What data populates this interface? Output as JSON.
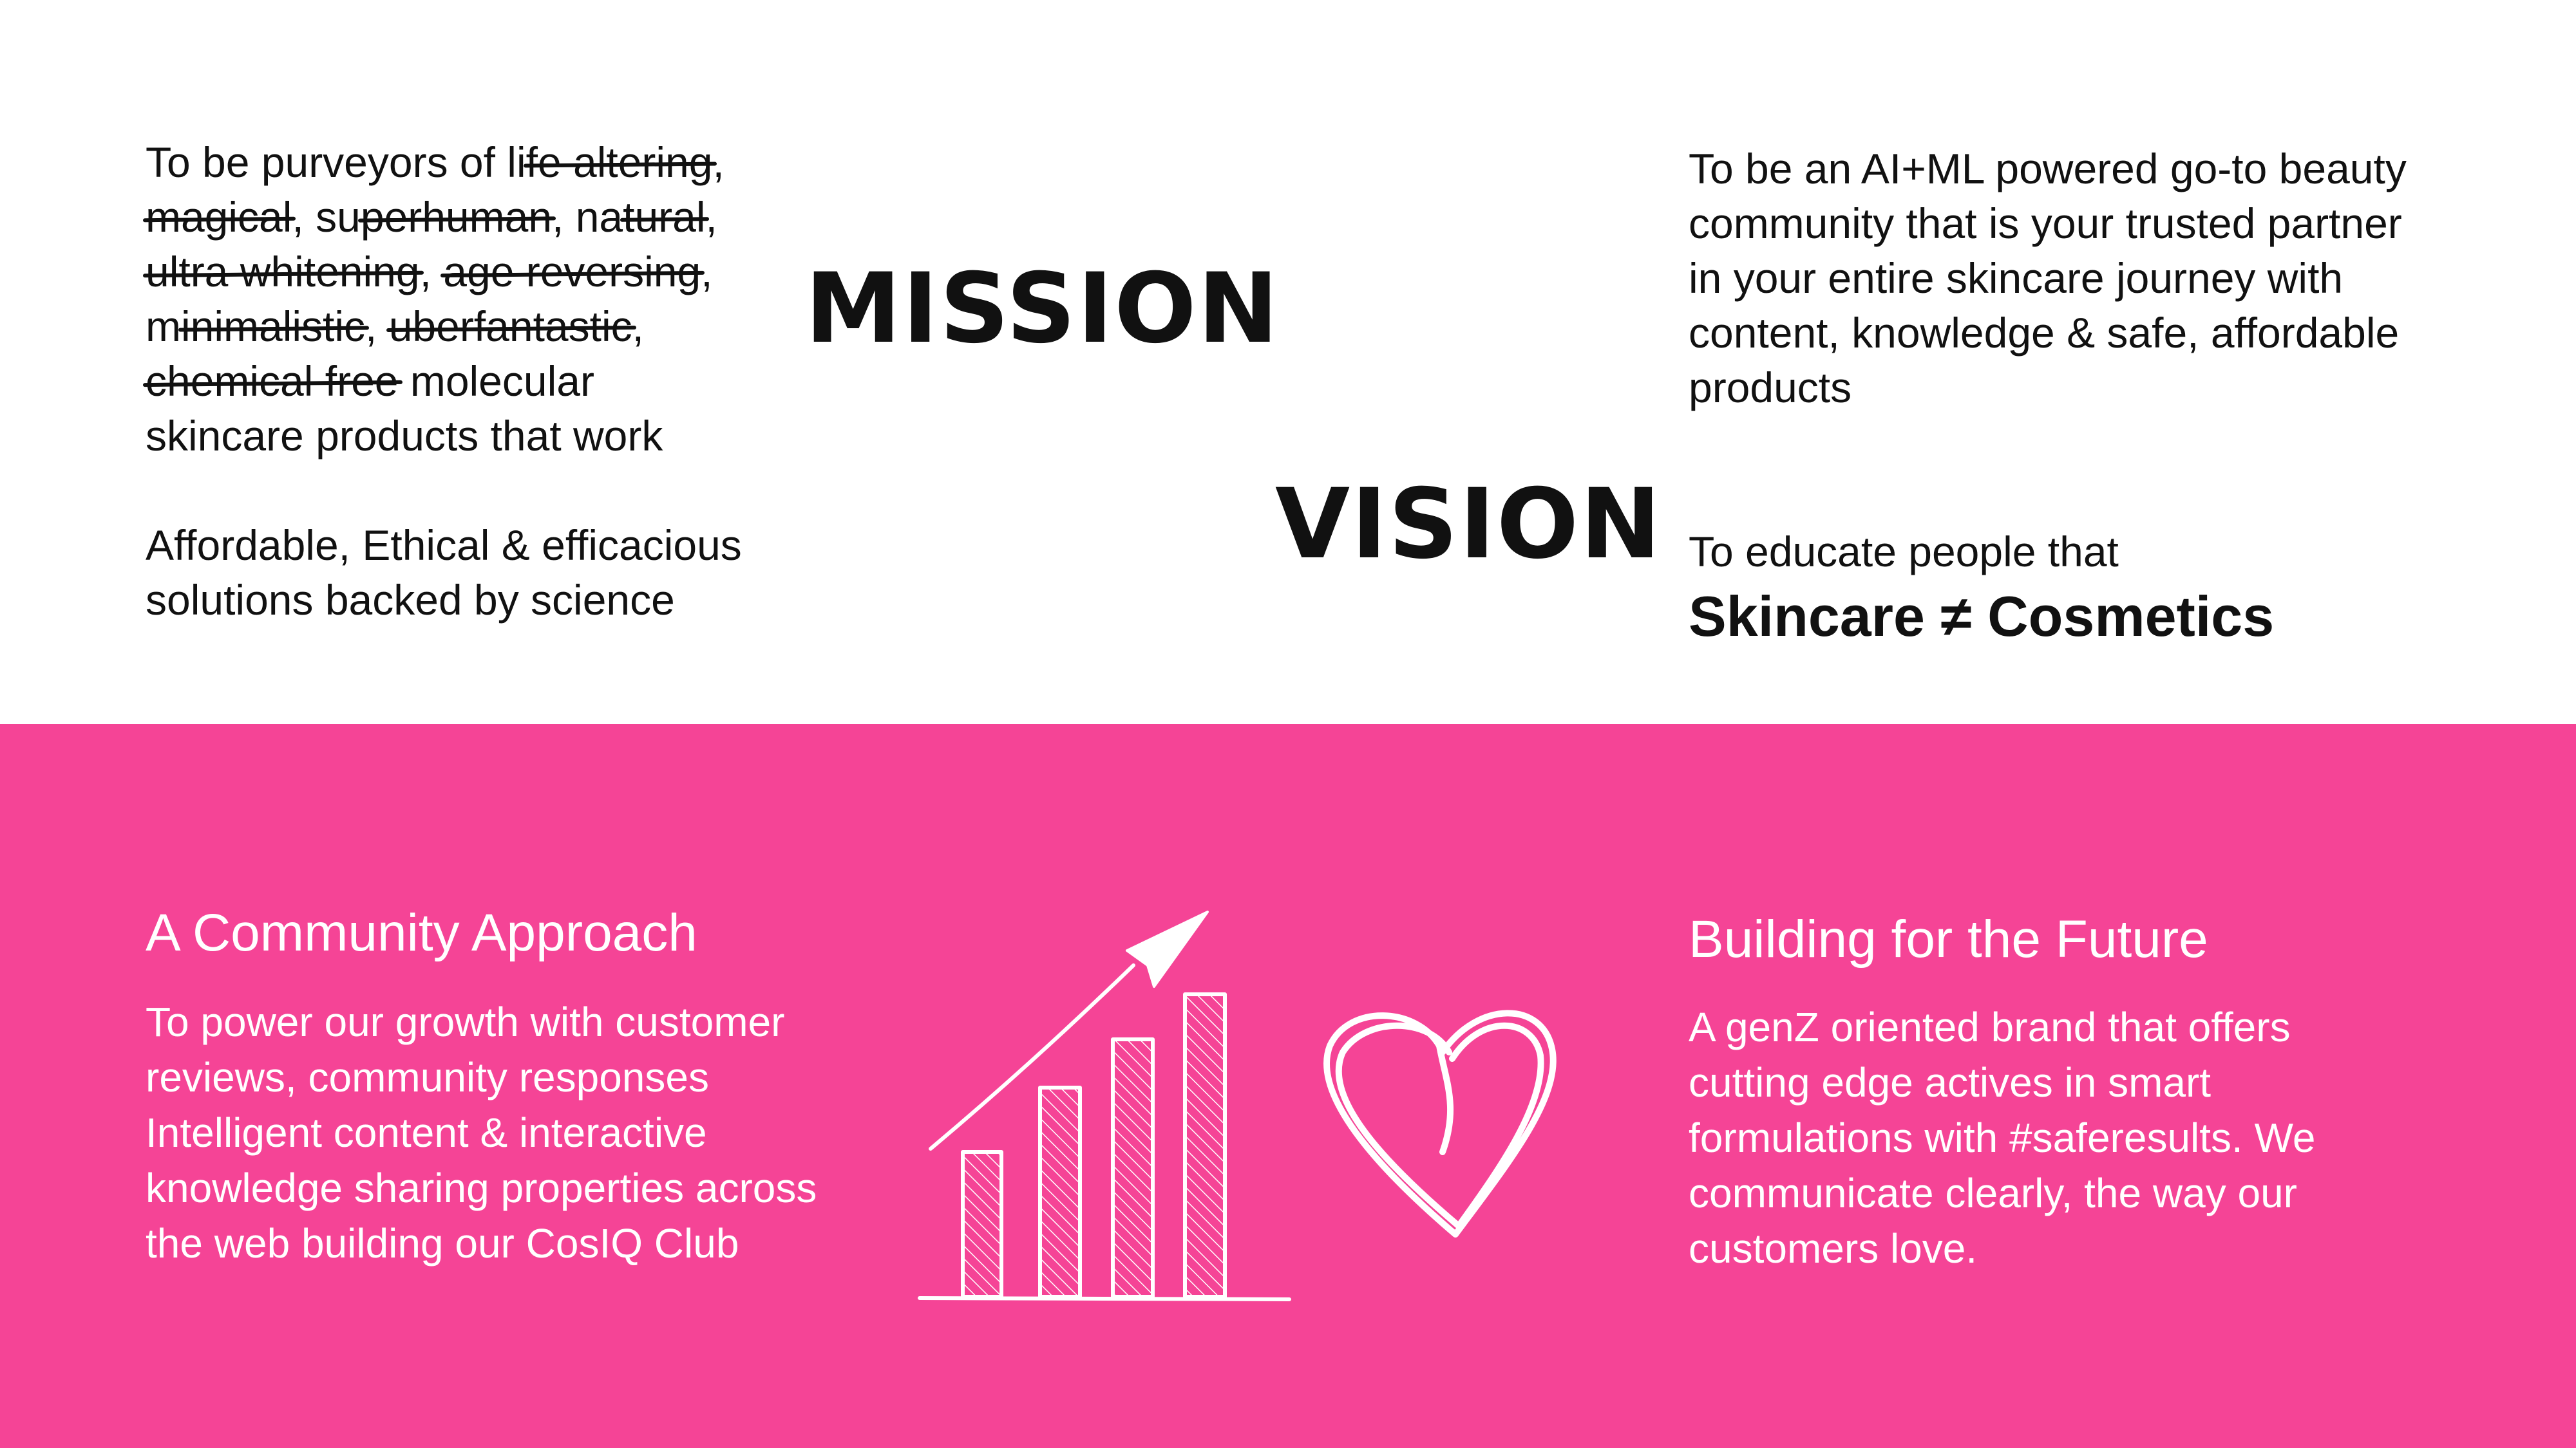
{
  "mission": {
    "heading": "MISSION",
    "line1": {
      "a": "To be purveyors of li",
      "s1": "fe altering",
      "b": ","
    },
    "line2": {
      "s1": "magical",
      "a": ", su",
      "s2": "perhuman",
      "b": ", na",
      "s3": "tural",
      "c": ","
    },
    "line3": {
      "s1": "ultra whitening",
      "a": ", ",
      "s2": "age reversing",
      "b": ","
    },
    "line4": {
      "a": "m",
      "s1": "inimalistic",
      "b": ", ",
      "s2": "uberfantastic",
      "c": ","
    },
    "line5": {
      "s1": "chemical free",
      "a": " molecular"
    },
    "line6": "skincare products that work",
    "line7": "Affordable, Ethical & efficacious",
    "line8": "solutions backed by science"
  },
  "vision": {
    "heading": "VISION",
    "lines": [
      "To be an AI+ML powered go-to beauty",
      "community that is your trusted partner",
      "in your entire skincare journey with",
      "content, knowledge & safe, affordable",
      "products"
    ],
    "educate": "To educate people that",
    "emphasis": "Skincare ≠ Cosmetics"
  },
  "community": {
    "title": "A Community Approach",
    "lines": [
      "To power our growth with customer",
      "reviews, community responses",
      "Intelligent content & interactive",
      "knowledge sharing properties across",
      "the web  building our CosIQ Club"
    ]
  },
  "future": {
    "title": "Building for the Future",
    "lines": [
      "A genZ oriented brand that offers",
      "cutting edge actives in smart",
      "formulations with #saferesults. We",
      "communicate clearly, the way our",
      "customers love."
    ]
  },
  "colors": {
    "accent_pink": "#f54496",
    "text_dark": "#111111",
    "text_light": "#ffffff"
  },
  "icons": {
    "growth": "growth-chart-sketch-icon",
    "heart": "heart-sketch-icon"
  }
}
